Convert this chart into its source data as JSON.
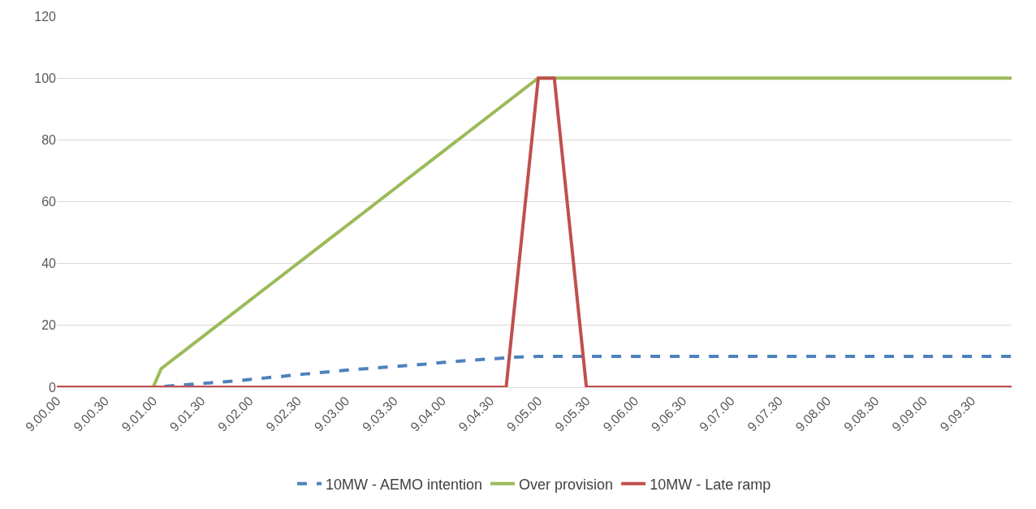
{
  "chart_data": {
    "type": "line",
    "ylim": [
      0,
      120
    ],
    "yticks": [
      0,
      20,
      40,
      60,
      80,
      100,
      120
    ],
    "categories": [
      "9.00.00",
      null,
      null,
      null,
      null,
      null,
      "9.00.30",
      null,
      null,
      null,
      null,
      null,
      "9.01.00",
      null,
      null,
      null,
      null,
      null,
      "9.01.30",
      null,
      null,
      null,
      null,
      null,
      "9.02.00",
      null,
      null,
      null,
      null,
      null,
      "9.02.30",
      null,
      null,
      null,
      null,
      null,
      "9.03.00",
      null,
      null,
      null,
      null,
      null,
      "9.03.30",
      null,
      null,
      null,
      null,
      null,
      "9.04.00",
      null,
      null,
      null,
      null,
      null,
      "9.04.30",
      null,
      null,
      null,
      null,
      null,
      "9.05.00",
      null,
      null,
      null,
      null,
      null,
      "9.05.30",
      null,
      null,
      null,
      null,
      null,
      "9.06.00",
      null,
      null,
      null,
      null,
      null,
      "9.06.30",
      null,
      null,
      null,
      null,
      null,
      "9.07.00",
      null,
      null,
      null,
      null,
      null,
      "9.07.30",
      null,
      null,
      null,
      null,
      null,
      "9.08.00",
      null,
      null,
      null,
      null,
      null,
      "9.08.30",
      null,
      null,
      null,
      null,
      null,
      "9.09.00",
      null,
      null,
      null,
      null,
      null,
      "9.09.30",
      null,
      null,
      null,
      null,
      null
    ],
    "grid": "y",
    "legend": "bottom",
    "marker": "none",
    "series": [
      {
        "name": "10MW - AEMO intention",
        "color": "#4f81bd",
        "line_style": "dashed",
        "values": [
          null,
          null,
          null,
          null,
          null,
          null,
          null,
          null,
          null,
          null,
          null,
          0,
          0,
          0.2,
          0.4,
          0.6,
          0.8,
          1,
          1.2,
          1.4,
          1.6,
          1.8,
          2,
          2.2,
          2.5,
          2.8,
          3,
          3.3,
          3.5,
          3.8,
          4,
          4.3,
          4.5,
          4.8,
          5,
          5.3,
          5.5,
          5.7,
          5.9,
          6.1,
          6.3,
          6.5,
          6.7,
          6.9,
          7.1,
          7.3,
          7.5,
          7.7,
          8,
          8.2,
          8.4,
          8.6,
          8.8,
          9,
          9.1,
          9.3,
          9.5,
          9.7,
          9.8,
          9.9,
          10,
          10,
          10,
          10,
          10,
          10,
          10,
          10,
          10,
          10,
          10,
          10,
          10,
          10,
          10,
          10,
          10,
          10,
          10,
          10,
          10,
          10,
          10,
          10,
          10,
          10,
          10,
          10,
          10,
          10,
          10,
          10,
          10,
          10,
          10,
          10,
          10,
          10,
          10,
          10,
          10,
          10,
          10,
          10,
          10,
          10,
          10,
          10,
          10,
          10,
          10,
          10,
          10,
          10,
          10,
          10,
          10,
          10,
          10,
          10
        ]
      },
      {
        "name": "Over provision",
        "color": "#9bbb59",
        "line_style": "solid",
        "values": [
          null,
          null,
          null,
          null,
          null,
          null,
          null,
          null,
          null,
          null,
          null,
          0,
          0,
          6,
          8,
          10,
          12,
          14,
          16,
          18,
          20,
          22,
          24,
          26,
          28,
          30,
          32,
          34,
          36,
          38,
          40,
          42,
          44,
          46,
          48,
          50,
          52,
          54,
          56,
          58,
          60,
          62,
          64,
          66,
          68,
          70,
          72,
          74,
          76,
          78,
          80,
          82,
          84,
          86,
          88,
          90,
          92,
          94,
          96,
          98,
          100,
          100,
          100,
          100,
          100,
          100,
          100,
          100,
          100,
          100,
          100,
          100,
          100,
          100,
          100,
          100,
          100,
          100,
          100,
          100,
          100,
          100,
          100,
          100,
          100,
          100,
          100,
          100,
          100,
          100,
          100,
          100,
          100,
          100,
          100,
          100,
          100,
          100,
          100,
          100,
          100,
          100,
          100,
          100,
          100,
          100,
          100,
          100,
          100,
          100,
          100,
          100,
          100,
          100,
          100,
          100,
          100,
          100,
          100,
          100
        ]
      },
      {
        "name": "10MW - Late ramp",
        "color": "#c0504d",
        "line_style": "solid",
        "values": [
          0,
          0,
          0,
          0,
          0,
          0,
          0,
          0,
          0,
          0,
          0,
          0,
          0,
          0,
          0,
          0,
          0,
          0,
          0,
          0,
          0,
          0,
          0,
          0,
          0,
          0,
          0,
          0,
          0,
          0,
          0,
          0,
          0,
          0,
          0,
          0,
          0,
          0,
          0,
          0,
          0,
          0,
          0,
          0,
          0,
          0,
          0,
          0,
          0,
          0,
          0,
          0,
          0,
          0,
          0,
          0,
          0,
          25,
          50,
          75,
          100,
          100,
          100,
          75,
          50,
          25,
          0,
          0,
          0,
          0,
          0,
          0,
          0,
          0,
          0,
          0,
          0,
          0,
          0,
          0,
          0,
          0,
          0,
          0,
          0,
          0,
          0,
          0,
          0,
          0,
          0,
          0,
          0,
          0,
          0,
          0,
          0,
          0,
          0,
          0,
          0,
          0,
          0,
          0,
          0,
          0,
          0,
          0,
          0,
          0,
          0,
          0,
          0,
          0,
          0,
          0,
          0,
          0,
          0,
          0
        ]
      }
    ]
  }
}
